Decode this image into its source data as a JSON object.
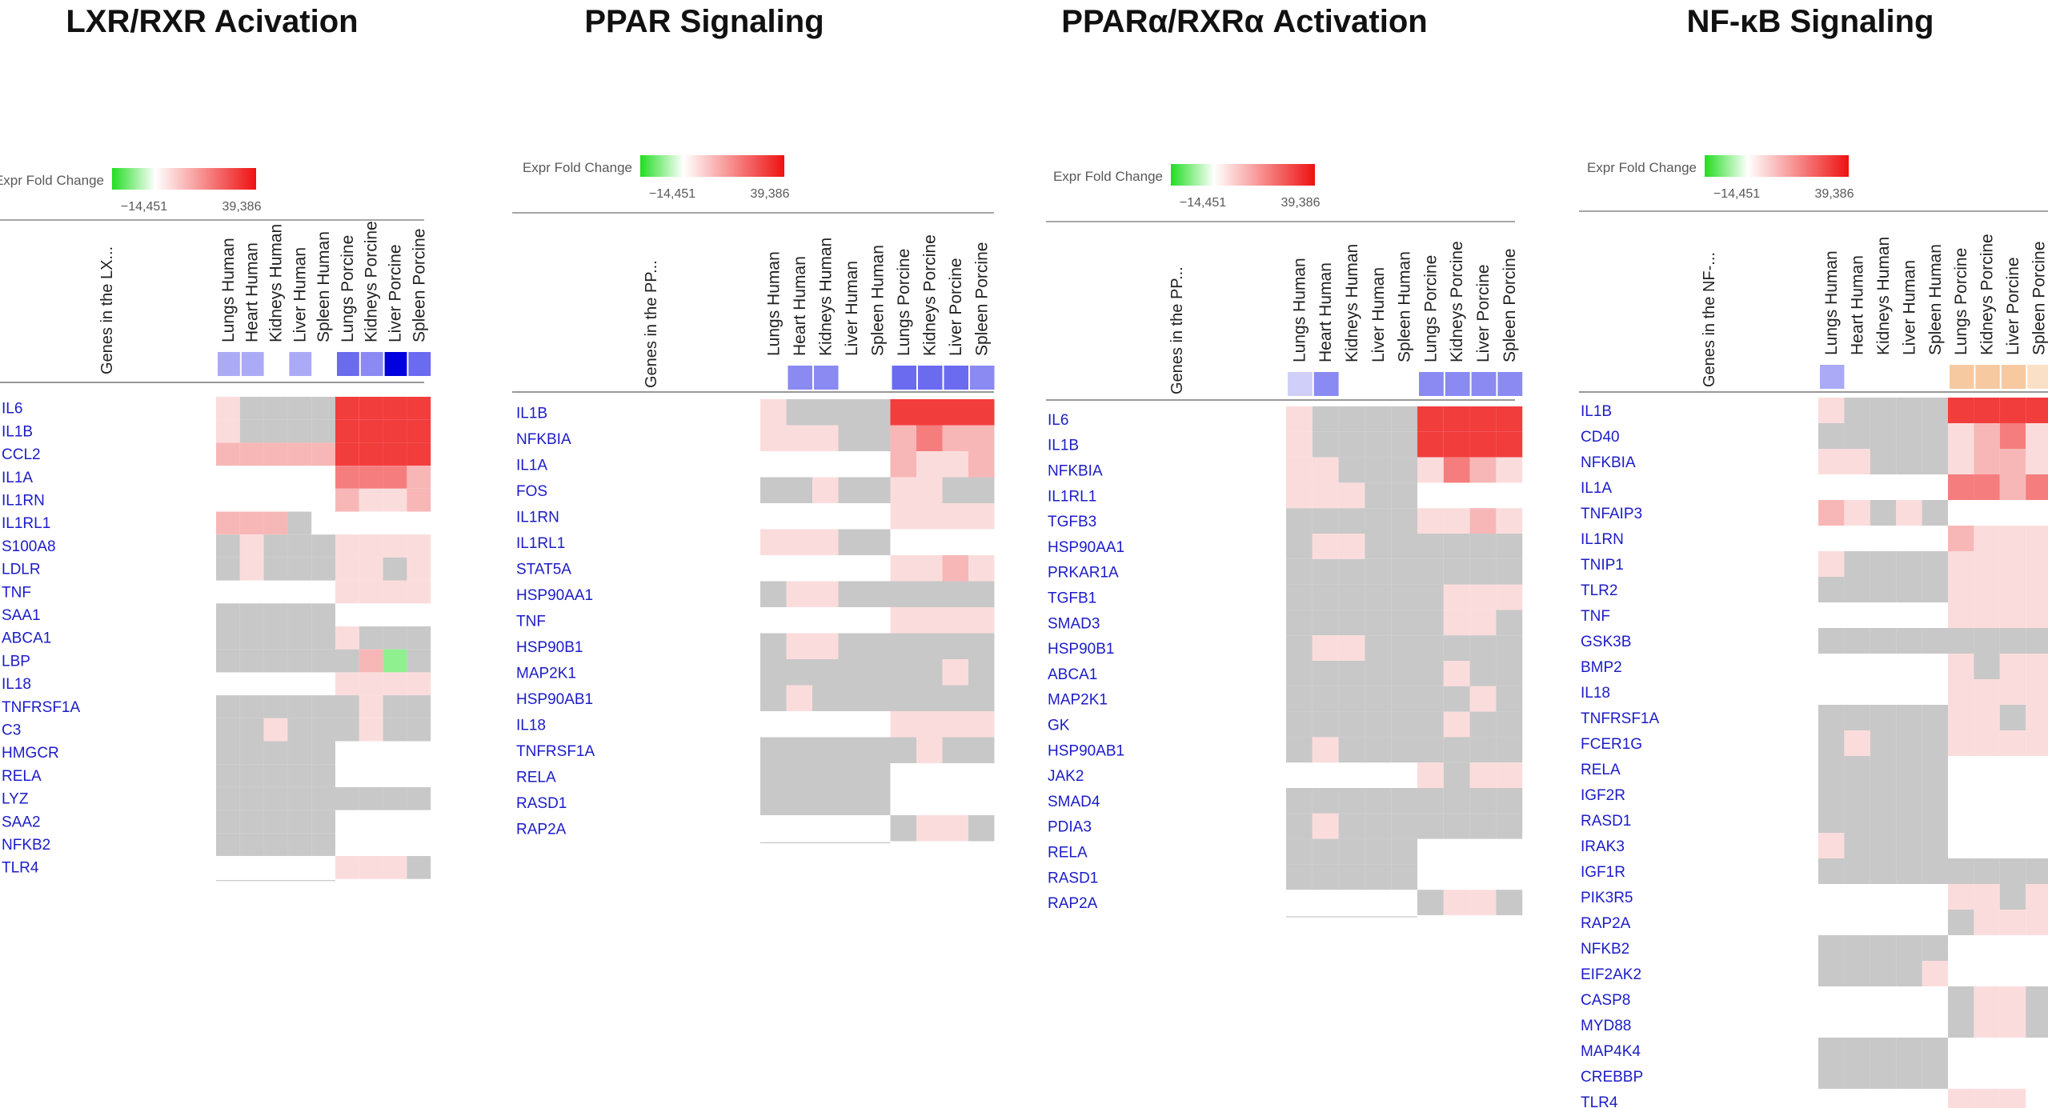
{
  "scale": {
    "label": "Expr Fold Change",
    "min": "−14,451",
    "max": "39,386"
  },
  "colors": {
    "missing": "#c8c8c8",
    "up_light": "#fbdcdc",
    "up_mid": "#f8b7b7",
    "up_strong": "#f57d7d",
    "up_max": "#f23d3d",
    "down": "#8ff08f",
    "blank": "#ffffff",
    "gene_text": "#1c1cc8",
    "title_text": "#111111",
    "grey_text": "#595959",
    "z_pale": "#cfcffa",
    "z_light": "#aaaaf6",
    "z_mid": "#8a8af2",
    "z_deep": "#6b6bf0",
    "z_dark": "#0000e0",
    "z_orange": "#f7c9a0",
    "z_orange_light": "#fbe0c8"
  },
  "chart_data": [
    {
      "type": "heatmap",
      "title": "LXR/RXR Acivation",
      "row_axis_label": "Genes in the LX...",
      "columns": [
        "Lungs Human",
        "Heart Human",
        "Kidneys Human",
        "Liver Human",
        "Spleen Human",
        "Lungs Porcine",
        "Kidneys Porcine",
        "Liver Porcine",
        "Spleen Porcine"
      ],
      "zscore": [
        "z_light",
        "z_light",
        "",
        "z_light",
        "",
        "z_deep",
        "z_mid",
        "z_dark",
        "z_deep"
      ],
      "rows": [
        "IL6",
        "IL1B",
        "CCL2",
        "IL1A",
        "IL1RN",
        "IL1RL1",
        "S100A8",
        "LDLR",
        "TNF",
        "SAA1",
        "ABCA1",
        "LBP",
        "IL18",
        "TNFRSF1A",
        "C3",
        "HMGCR",
        "RELA",
        "LYZ",
        "SAA2",
        "NFKB2",
        "TLR4"
      ],
      "cells": [
        "LMMMMXXXX",
        "LMMMMXXXX",
        "BBBBBXXXX",
        "WWWWWSSSB",
        "WWWWWBLLB",
        "BBBMWWWWW",
        "MLMMMLLLL",
        "MLMMMLLML",
        "WWWWWLLLL",
        "MMMMMWWWW",
        "MMMMMLMMM",
        "MMMMMMBDM",
        "WWWWWLLLL",
        "MMMMMMLMM",
        "MMLMMMLMM",
        "MMMMMWWWW",
        "MMMMMWWWW",
        "MMMMMMMMM",
        "MMMMMWWWW",
        "MMMMMWWWW",
        "WWWWWLLLM"
      ]
    },
    {
      "type": "heatmap",
      "title": "PPAR Signaling",
      "row_axis_label": "Genes in the PP...",
      "columns": [
        "Lungs Human",
        "Heart Human",
        "Kidneys Human",
        "Liver Human",
        "Spleen Human",
        "Lungs Porcine",
        "Kidneys Porcine",
        "Liver Porcine",
        "Spleen Porcine"
      ],
      "zscore": [
        "",
        "z_mid",
        "z_mid",
        "",
        "",
        "z_deep",
        "z_deep",
        "z_deep",
        "z_mid"
      ],
      "rows": [
        "IL1B",
        "NFKBIA",
        "IL1A",
        "FOS",
        "IL1RN",
        "IL1RL1",
        "STAT5A",
        "HSP90AA1",
        "TNF",
        "HSP90B1",
        "MAP2K1",
        "HSP90AB1",
        "IL18",
        "TNFRSF1A",
        "RELA",
        "RASD1",
        "RAP2A"
      ],
      "cells": [
        "LMMMMXXXX",
        "LLLMMBSBB",
        "WWWWWBLLB",
        "MMLMMLLMM",
        "WWWWWLLLL",
        "LLLMMWWWW",
        "WWWWWLLBL",
        "MLLMMMMMM",
        "WWWWWLLLL",
        "MLLMMMMMM",
        "MMMMMMMLM",
        "MLMMMMMMM",
        "WWWWWLLLL",
        "MMMMMMLMM",
        "MMMMMWWWW",
        "MMMMMWWWW",
        "WWWWWMLLM"
      ]
    },
    {
      "type": "heatmap",
      "title": "PPARα/RXRα Activation",
      "row_axis_label": "Genes in the PP...",
      "columns": [
        "Lungs Human",
        "Heart Human",
        "Kidneys Human",
        "Liver Human",
        "Spleen Human",
        "Lungs Porcine",
        "Kidneys Porcine",
        "Liver Porcine",
        "Spleen Porcine"
      ],
      "zscore": [
        "z_pale",
        "z_mid",
        "",
        "",
        "",
        "z_mid",
        "z_mid",
        "z_mid",
        "z_mid"
      ],
      "rows": [
        "IL6",
        "IL1B",
        "NFKBIA",
        "IL1RL1",
        "TGFB3",
        "HSP90AA1",
        "PRKAR1A",
        "TGFB1",
        "SMAD3",
        "HSP90B1",
        "ABCA1",
        "MAP2K1",
        "GK",
        "HSP90AB1",
        "JAK2",
        "SMAD4",
        "PDIA3",
        "RELA",
        "RASD1",
        "RAP2A"
      ],
      "cells": [
        "LMMMMXXXX",
        "LMMMMXXXX",
        "LLMMMLSBL",
        "LLLMMWWWW",
        "MMMMMLLBL",
        "MLLMMMMMM",
        "MMMMMMMMM",
        "MMMMMMLLL",
        "MMMMMMLLM",
        "MLLMMMMMM",
        "MMMMMMLMM",
        "MMMMMMMLM",
        "MMMMMMLMM",
        "MLMMMMMMM",
        "WWWWWLMLL",
        "MMMMMMMMM",
        "MLMMMMMMM",
        "MMMMMWWWW",
        "MMMMMWWWW",
        "WWWWWMLLM"
      ]
    },
    {
      "type": "heatmap",
      "title": "NF-κB Signaling",
      "row_axis_label": "Genes in the NF-...",
      "columns": [
        "Lungs Human",
        "Heart Human",
        "Kidneys Human",
        "Liver Human",
        "Spleen Human",
        "Lungs Porcine",
        "Kidneys Porcine",
        "Liver Porcine",
        "Spleen Porcine"
      ],
      "zscore": [
        "z_light",
        "",
        "",
        "",
        "",
        "z_orange",
        "z_orange",
        "z_orange",
        "z_orange_light"
      ],
      "rows": [
        "IL1B",
        "CD40",
        "NFKBIA",
        "IL1A",
        "TNFAIP3",
        "IL1RN",
        "TNIP1",
        "TLR2",
        "TNF",
        "GSK3B",
        "BMP2",
        "IL18",
        "TNFRSF1A",
        "FCER1G",
        "RELA",
        "IGF2R",
        "RASD1",
        "IRAK3",
        "IGF1R",
        "PIK3R5",
        "RAP2A",
        "NFKB2",
        "EIF2AK2",
        "CASP8",
        "MYD88",
        "MAP4K4",
        "CREBBP",
        "TLR4"
      ],
      "cells": [
        "LMMMMXXXX",
        "MMMMMLBSL",
        "LLMMMLBBL",
        "WWWWWSSBS",
        "BLMLMWWWW",
        "WWWWWBLLL",
        "LMMMMLLLL",
        "MMMMMLLLL",
        "WWWWWLLLL",
        "MMMMMMMMM",
        "WWWWWLMLL",
        "WWWWWLLLL",
        "MMMMMLLML",
        "MLMMMLLLL",
        "MMMMMWWWW",
        "MMMMMWWWW",
        "MMMMMWWWW",
        "LMMMMWWWW",
        "MMMMMMMMM",
        "WWWWWLLML",
        "WWWWWMLLL",
        "MMMMMWWWW",
        "MMMMLWWWW",
        "WWWWWMLLM",
        "WWWWWMLLM",
        "MMMMMWWWW",
        "MMMMMWWWW",
        "WWWWWLLLW"
      ]
    }
  ]
}
